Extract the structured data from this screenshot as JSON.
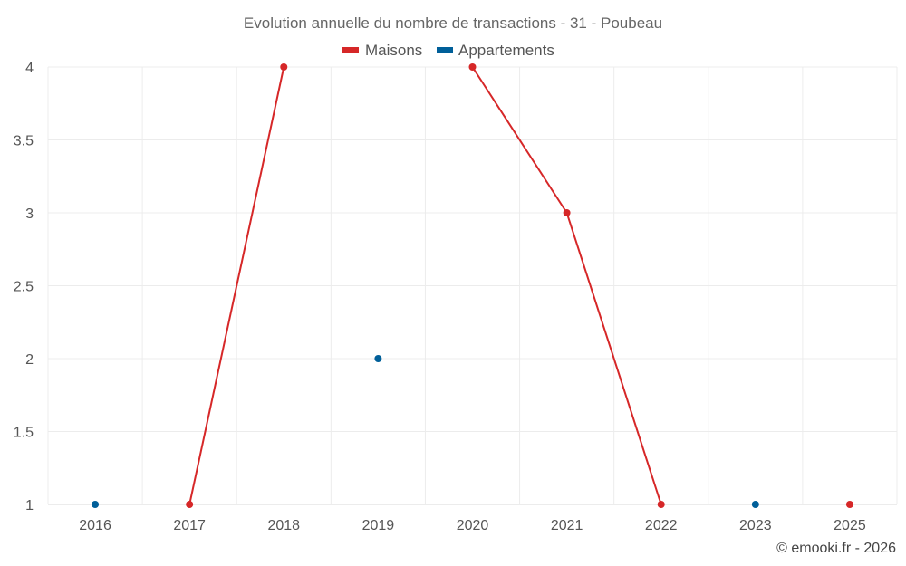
{
  "chart_data": {
    "type": "line",
    "title": "Evolution annuelle du nombre de transactions - 31 - Poubeau",
    "categories": [
      "2016",
      "2017",
      "2018",
      "2019",
      "2020",
      "2021",
      "2022",
      "2023",
      "2025"
    ],
    "series": [
      {
        "name": "Maisons",
        "color": "#d62728",
        "values": [
          null,
          1,
          4,
          null,
          4,
          3,
          1,
          null,
          1
        ]
      },
      {
        "name": "Appartements",
        "color": "#005f99",
        "values": [
          1,
          null,
          null,
          2,
          null,
          null,
          null,
          1,
          null
        ]
      }
    ],
    "yticks": [
      "1",
      "1.5",
      "2",
      "2.5",
      "3",
      "3.5",
      "4"
    ],
    "ylim": [
      1,
      4
    ],
    "xlabel": "",
    "ylabel": "",
    "grid": true,
    "legend": "top-center"
  },
  "credit": "© emooki.fr - 2026"
}
